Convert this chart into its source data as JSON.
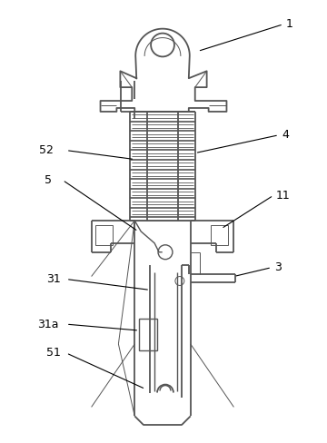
{
  "background_color": "#ffffff",
  "line_color": "#555555",
  "dpi": 100,
  "figure_width": 3.6,
  "figure_height": 4.88
}
